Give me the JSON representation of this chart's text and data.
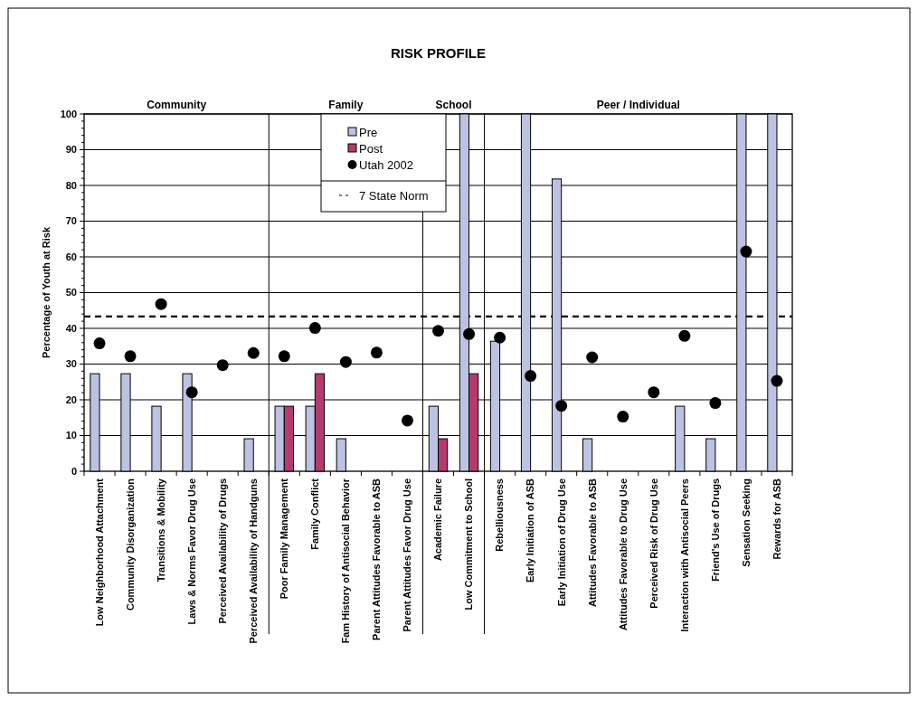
{
  "chart_data": {
    "type": "bar",
    "title": "RISK PROFILE",
    "ylabel": "Percentage of Youth at Risk",
    "categories": [
      "Low Neighborhood Attachment",
      "Community Disorganization",
      "Transitions & Mobility",
      "Laws & Norms Favor Drug Use",
      "Perceived Availability of Drugs",
      "Perceived Availability of Handguns",
      "Poor Family Management",
      "Family Conflict",
      "Fam History of Antisocial Behavior",
      "Parent Attitudes Favorable to ASB",
      "Parent Attitudes Favor Drug Use",
      "Academic Failure",
      "Low Commitment to School",
      "Rebelliousness",
      "Early Initiation of ASB",
      "Early Initiation of Drug Use",
      "Attitudes Favorable to ASB",
      "Attitudes Favorable to Drug Use",
      "Perceived Risk of Drug Use",
      "Interaction with Antisocial Peers",
      "Friend's Use of Drugs",
      "Sensation Seeking",
      "Rewards for ASB"
    ],
    "series": [
      {
        "name": "Pre",
        "color": "#bcc3e2",
        "values": [
          27.3,
          27.3,
          18.2,
          27.3,
          null,
          9.1,
          18.2,
          18.2,
          9.1,
          null,
          null,
          18.2,
          100,
          36.4,
          100,
          81.8,
          9.1,
          null,
          null,
          18.2,
          9.1,
          100,
          100
        ]
      },
      {
        "name": "Post",
        "color": "#b33b6e",
        "values": [
          null,
          null,
          null,
          null,
          null,
          null,
          18.2,
          27.3,
          null,
          null,
          null,
          9.1,
          27.3,
          null,
          null,
          null,
          null,
          null,
          null,
          null,
          null,
          null,
          null
        ]
      },
      {
        "name": "Utah 2002",
        "type": "scatter",
        "color": "#000000",
        "marker": "circle",
        "x": [
          "Low Neighborhood Attachment",
          "Community Disorganization",
          "Transitions & Mobility",
          "Laws & Norms Favor Drug Use",
          "Perceived Availability of Drugs",
          "Perceived Availability of Handguns",
          "Poor Family Management",
          "Family Conflict",
          "Fam History of Antisocial Behavior",
          "Parent Attitudes Favorable to ASB",
          "Parent Attitudes Favor Drug Use",
          "Academic Failure",
          "Low Commitment to School",
          "Rebelliousness",
          "Early Initiation of ASB",
          "Early Initiation of Drug Use",
          "Attitudes Favorable to ASB",
          "Attitudes Favorable to Drug Use",
          "Perceived Risk of Drug Use",
          "Interaction with Antisocial Peers",
          "Friend's Use of Drugs",
          "Sensation Seeking",
          "Rewards for ASB"
        ],
        "values": [
          35.8,
          32.2,
          46.8,
          22.1,
          29.7,
          33.1,
          32.2,
          40.1,
          30.6,
          33.2,
          14.2,
          39.3,
          38.4,
          37.4,
          26.7,
          18.3,
          31.9,
          15.3,
          22.1,
          37.9,
          19.1,
          61.5,
          25.3
        ]
      }
    ],
    "ylim": [
      0,
      100
    ],
    "yticks": [
      0,
      {
        "value": 2,
        "label": null
      },
      {
        "value": 4,
        "label": null
      },
      {
        "value": 6,
        "label": null
      },
      {
        "value": 8,
        "label": null
      },
      10,
      {
        "value": 12,
        "label": null
      },
      {
        "value": 14,
        "label": null
      },
      {
        "value": 16,
        "label": null
      },
      {
        "value": 18,
        "label": null
      },
      20,
      {
        "value": 22,
        "label": null
      },
      {
        "value": 24,
        "label": null
      },
      {
        "value": 26,
        "label": null
      },
      {
        "value": 28,
        "label": null
      },
      30,
      {
        "value": 32,
        "label": null
      },
      {
        "value": 34,
        "label": null
      },
      {
        "value": 36,
        "label": null
      },
      {
        "value": 38,
        "label": null
      },
      40,
      {
        "value": 42,
        "label": null
      },
      {
        "value": 44,
        "label": null
      },
      {
        "value": 46,
        "label": null
      },
      {
        "value": 48,
        "label": null
      },
      50,
      {
        "value": 52,
        "label": null
      },
      {
        "value": 54,
        "label": null
      },
      {
        "value": 56,
        "label": null
      },
      {
        "value": 58,
        "label": null
      },
      60,
      {
        "value": 62,
        "label": null
      },
      {
        "value": 64,
        "label": null
      },
      {
        "value": 66,
        "label": null
      },
      {
        "value": 68,
        "label": null
      },
      70,
      {
        "value": 72,
        "label": null
      },
      {
        "value": 74,
        "label": null
      },
      {
        "value": 76,
        "label": null
      },
      {
        "value": 78,
        "label": null
      },
      80,
      {
        "value": 82,
        "label": null
      },
      {
        "value": 84,
        "label": null
      },
      {
        "value": 86,
        "label": null
      },
      {
        "value": 88,
        "label": null
      },
      90,
      {
        "value": 92,
        "label": null
      },
      {
        "value": 94,
        "label": null
      },
      {
        "value": 96,
        "label": null
      },
      {
        "value": 98,
        "label": null
      },
      100
    ],
    "grid": "y",
    "legend": "top",
    "ref_lines": [
      {
        "axis": "y",
        "value": 43.3,
        "label": "7 State Norm",
        "line_style": "dashed",
        "color": "#000000"
      }
    ],
    "annotations": [
      "Community",
      "Family",
      "School",
      "Peer / Individual"
    ]
  }
}
